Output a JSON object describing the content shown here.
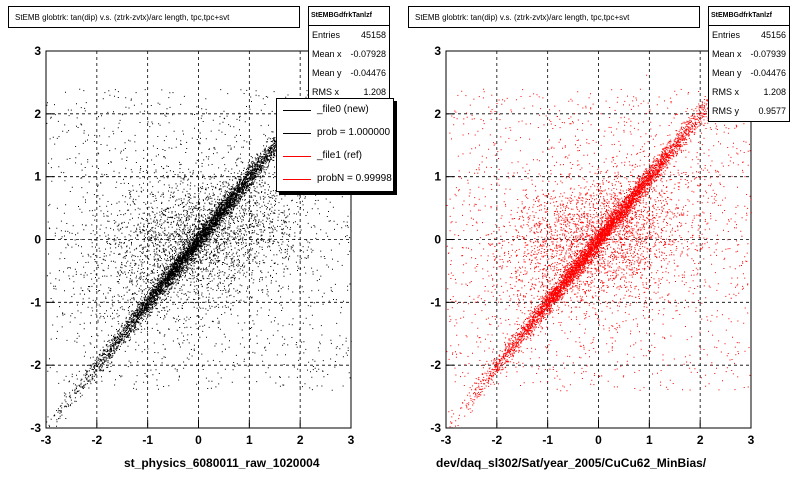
{
  "chart_data": [
    {
      "type": "scatter",
      "title": "StEMB globtrk: tan(dip) v.s. (ztrk-zvtx)/arc length, tpc,tpc+svt",
      "xlabel": "st_physics_6080011_raw_1020004",
      "ylabel": "",
      "xlim": [
        -3,
        3
      ],
      "ylim": [
        -3,
        3
      ],
      "xticks": [
        "-3",
        "-2",
        "-1",
        "0",
        "1",
        "2",
        "3"
      ],
      "yticks": [
        "-3",
        "-2",
        "-1",
        "0",
        "1",
        "2",
        "3"
      ],
      "grid": true,
      "color": "#000000",
      "stats": {
        "name": "StEMBGdfrkTanlzf",
        "rows": [
          {
            "label": "Entries",
            "value": "45158"
          },
          {
            "label": "Mean x",
            "value": "-0.07928"
          },
          {
            "label": "Mean y",
            "value": "-0.04476"
          },
          {
            "label": "RMS x",
            "value": "1.208"
          }
        ]
      },
      "legend": {
        "placement": "top-right",
        "entries": [
          {
            "label": "_file0 (new)",
            "color": "#000000"
          },
          {
            "label": "prob = 1.000000",
            "color": "#000000"
          },
          {
            "label": "_file1 (ref)",
            "color": "#ff0000"
          },
          {
            "label": "probN = 0.99998",
            "color": "#ff0000"
          }
        ]
      }
    },
    {
      "type": "scatter",
      "title": "StEMB globtrk: tan(dip) v.s. (ztrk-zvtx)/arc length, tpc,tpc+svt",
      "xlabel": "dev/daq_sl302/Sat/year_2005/CuCu62_MinBias/",
      "ylabel": "",
      "xlim": [
        -3,
        3
      ],
      "ylim": [
        -3,
        3
      ],
      "xticks": [
        "-3",
        "-2",
        "-1",
        "0",
        "1",
        "2",
        "3"
      ],
      "yticks": [
        "-3",
        "-2",
        "-1",
        "0",
        "1",
        "2",
        "3"
      ],
      "grid": true,
      "color": "#ff0000",
      "stats": {
        "name": "StEMBGdfrkTanlzf",
        "rows": [
          {
            "label": "Entries",
            "value": "45156"
          },
          {
            "label": "Mean x",
            "value": "-0.07939"
          },
          {
            "label": "Mean y",
            "value": "-0.04476"
          },
          {
            "label": "RMS x",
            "value": "1.208"
          },
          {
            "label": "RMS y",
            "value": "0.9577"
          }
        ]
      }
    }
  ]
}
